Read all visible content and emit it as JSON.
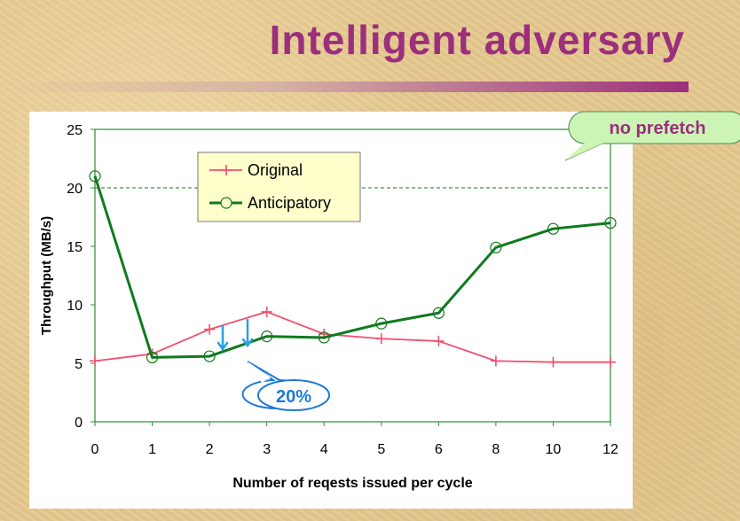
{
  "slide": {
    "title": "Intelligent adversary"
  },
  "chart_data": {
    "type": "line",
    "categories": [
      "0",
      "1",
      "2",
      "3",
      "4",
      "5",
      "6",
      "8",
      "10",
      "12"
    ],
    "series": [
      {
        "name": "Original",
        "values": [
          5.2,
          5.8,
          7.9,
          9.4,
          7.5,
          7.1,
          6.9,
          5.2,
          5.1,
          5.1
        ],
        "color": "#f0506e",
        "marker": "plus"
      },
      {
        "name": "Anticipatory",
        "values": [
          21.0,
          5.5,
          5.6,
          7.3,
          7.2,
          8.4,
          9.3,
          14.9,
          16.5,
          17.0
        ],
        "color": "#0f7a1e",
        "marker": "circle"
      }
    ],
    "xlabel": "Number of reqests issued per cycle",
    "ylabel": "Throughput (MB/s)",
    "ylim": [
      0,
      25
    ],
    "yticks": [
      0,
      5,
      10,
      15,
      20,
      25
    ],
    "reference_line": {
      "value": 20,
      "style": "dashed",
      "color": "#1a7a1a"
    },
    "legend_position": "top-left-inset",
    "annotations": [
      {
        "text": "no prefetch",
        "color": "#9b2f7c",
        "fill": "#ccf5b5"
      },
      {
        "text": "20%",
        "color": "#1e78d8",
        "fill": "#ffffff"
      }
    ],
    "arrow_color": "#2aa0e0"
  }
}
